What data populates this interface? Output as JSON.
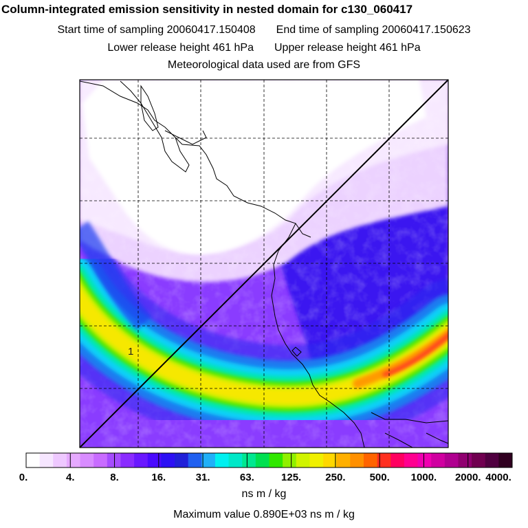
{
  "header": {
    "title": "Column-integrated emission sensitivity in nested domain for c130_060417",
    "start_label": "Start time of sampling 20060417.150408",
    "end_label": "End time of sampling 20060417.150623",
    "lower_label": "Lower release height  461 hPa",
    "upper_label": "Upper release height  461 hPa",
    "met_label": "Meteorological data used are from GFS"
  },
  "chart_data": {
    "type": "heatmap",
    "title": "Column-integrated emission sensitivity in nested domain for c130_060417",
    "point_label": "1",
    "colorbar": {
      "tick_labels": [
        "0.",
        "4.",
        "8.",
        "16.",
        "31.",
        "63.",
        "125.",
        "250.",
        "500.",
        "1000.",
        "2000.",
        "4000."
      ],
      "colors": [
        "#ffffff",
        "#f6e6ff",
        "#eec8ff",
        "#e6aaff",
        "#d88cff",
        "#c86cff",
        "#a64cff",
        "#8a2cff",
        "#6a18ff",
        "#4a0aff",
        "#2c10f4",
        "#2020d8",
        "#2060f0",
        "#20b0f8",
        "#00f0f0",
        "#00e8c8",
        "#00e890",
        "#00e050",
        "#30e800",
        "#90f000",
        "#d0f400",
        "#f0f000",
        "#ffd800",
        "#ffb000",
        "#ff9000",
        "#ff6400",
        "#ff3020",
        "#ff0060",
        "#ff0090",
        "#f000b0",
        "#d000a0",
        "#b00090",
        "#900070",
        "#700050",
        "#500040",
        "#300020"
      ],
      "units": "ns m / kg",
      "scale": "log"
    },
    "maximum": {
      "label": "Maximum value  0.890E+03 ns m / kg",
      "value": 890,
      "units": "ns m / kg"
    },
    "grid": true
  }
}
